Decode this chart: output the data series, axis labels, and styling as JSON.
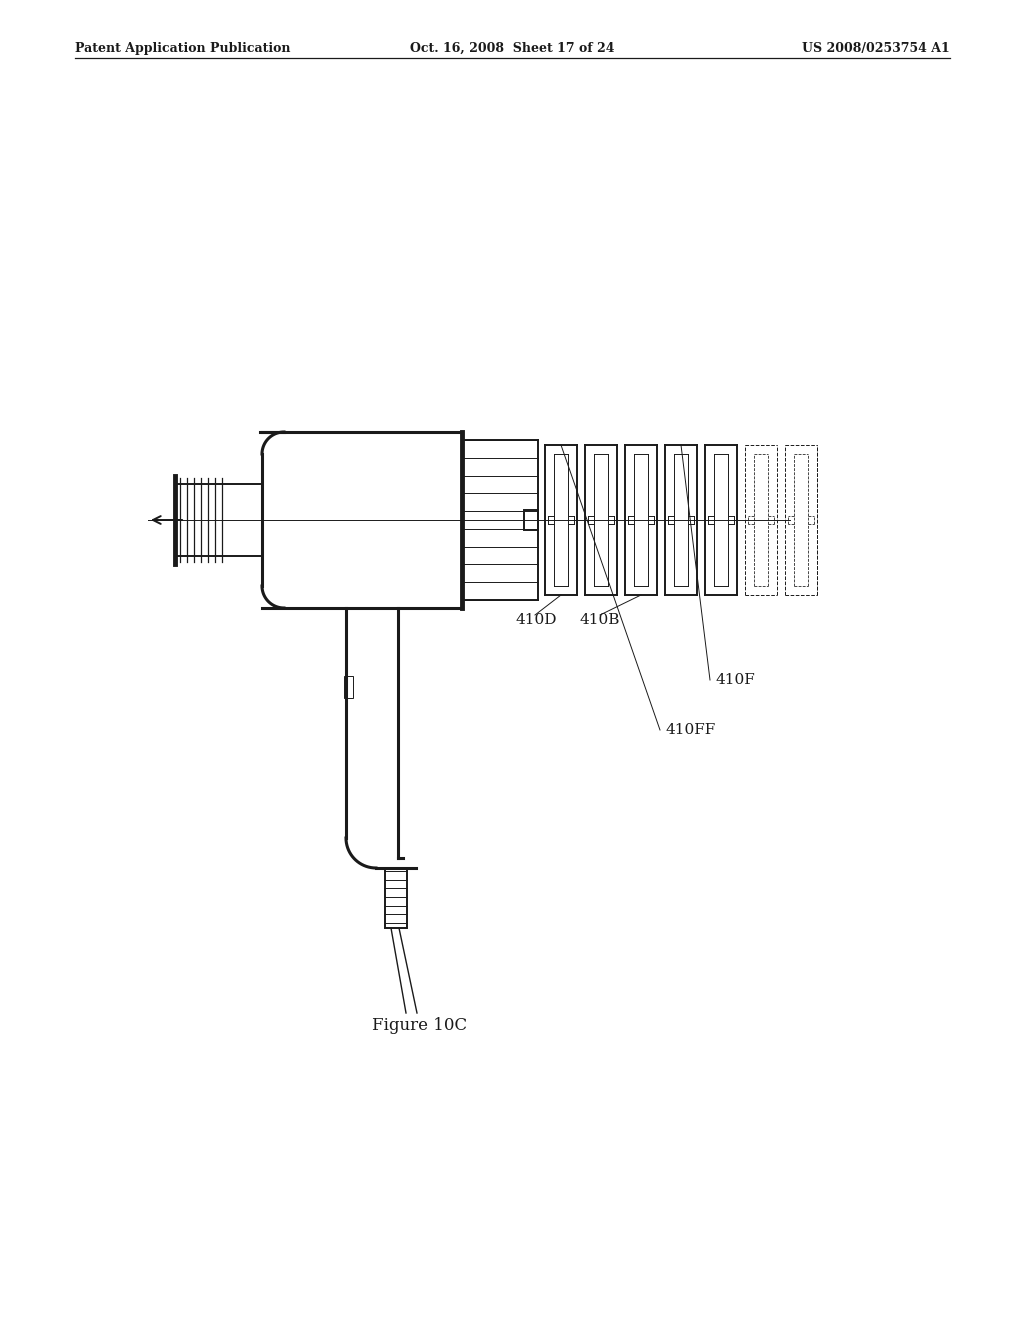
{
  "bg_color": "#ffffff",
  "line_color": "#1a1a1a",
  "header_left": "Patent Application Publication",
  "header_center": "Oct. 16, 2008  Sheet 17 of 24",
  "header_right": "US 2008/0253754 A1",
  "caption": "Figure 10C",
  "label_410FF": "410FF",
  "label_410F": "410F",
  "label_410D": "410D",
  "label_410B": "410B",
  "lw": 1.4,
  "lw_thin": 0.7,
  "lw_thick": 2.2,
  "lw_vtick": 3.5
}
